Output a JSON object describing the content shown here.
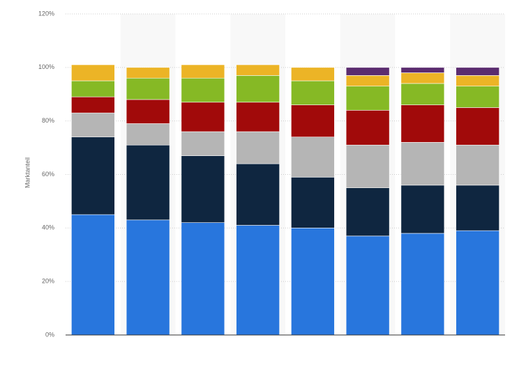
{
  "chart_data": {
    "type": "stacked-bar",
    "y_label": "Marktanteil",
    "categories": [
      null,
      null,
      null,
      null,
      null,
      null,
      null,
      null
    ],
    "series": [
      {
        "color": "#2876dd",
        "values": [
          45,
          43,
          42,
          41,
          40,
          37,
          38,
          39
        ]
      },
      {
        "color": "#0f2640",
        "values": [
          29,
          28,
          25,
          23,
          19,
          18,
          18,
          17
        ]
      },
      {
        "color": "#b5b5b5",
        "values": [
          9,
          8,
          9,
          12,
          15,
          16,
          16,
          15
        ]
      },
      {
        "color": "#a10a0a",
        "values": [
          6,
          9,
          11,
          11,
          12,
          13,
          14,
          14
        ]
      },
      {
        "color": "#86b925",
        "values": [
          6,
          8,
          9,
          10,
          9,
          9,
          8,
          8
        ]
      },
      {
        "color": "#ecb426",
        "values": [
          6,
          4,
          5,
          4,
          5,
          4,
          4,
          4
        ]
      },
      {
        "color": "#5b2c6f",
        "values": [
          0,
          0,
          0,
          0,
          0,
          3,
          2,
          3
        ]
      }
    ],
    "ylim": [
      0,
      120
    ],
    "yticks": [
      {
        "value": 0,
        "label": "0%"
      },
      {
        "value": 20,
        "label": "20%"
      },
      {
        "value": 40,
        "label": "40%"
      },
      {
        "value": 60,
        "label": "60%"
      },
      {
        "value": 80,
        "label": "80%"
      },
      {
        "value": 100,
        "label": "100%"
      },
      {
        "value": 120,
        "label": "120%"
      }
    ],
    "grid": true
  }
}
